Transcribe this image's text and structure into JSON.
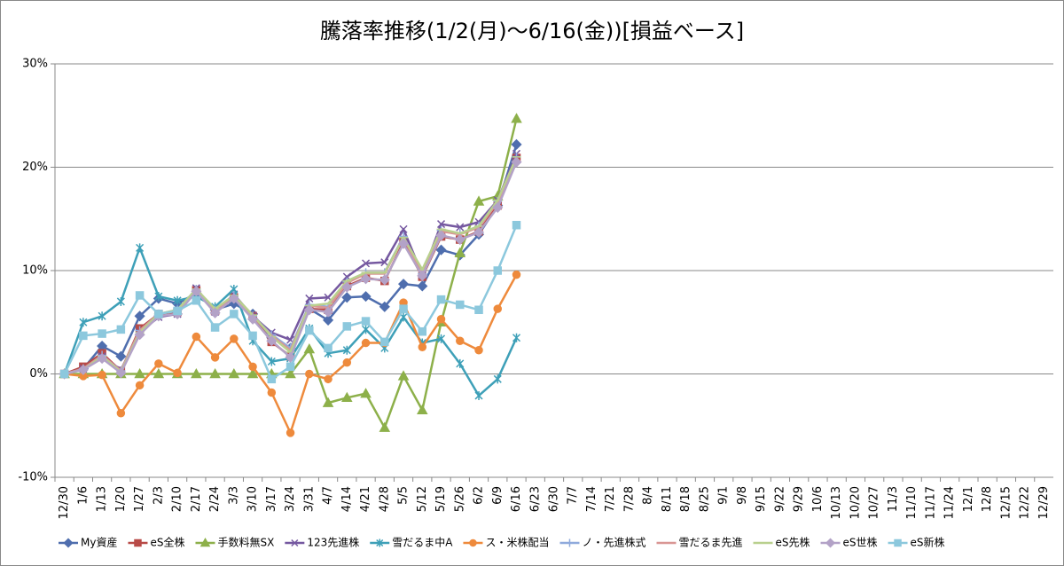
{
  "chart_data": {
    "type": "line",
    "title": "騰落率推移(1/2(月)～6/16(金))[損益ベース]",
    "categories": [
      "12/30",
      "1/6",
      "1/13",
      "1/20",
      "1/27",
      "2/3",
      "2/10",
      "2/17",
      "2/24",
      "3/3",
      "3/10",
      "3/17",
      "3/24",
      "3/31",
      "4/7",
      "4/14",
      "4/21",
      "4/28",
      "5/5",
      "5/12",
      "5/19",
      "5/26",
      "6/2",
      "6/9",
      "6/16",
      "6/23",
      "6/30",
      "7/7",
      "7/14",
      "7/21",
      "7/28",
      "8/4",
      "8/11",
      "8/18",
      "8/25",
      "9/1",
      "9/8",
      "9/15",
      "9/22",
      "9/29",
      "10/6",
      "10/13",
      "10/20",
      "10/27",
      "11/3",
      "11/10",
      "11/17",
      "11/24",
      "12/1",
      "12/8",
      "12/15",
      "12/22",
      "12/29"
    ],
    "ylim": [
      -10,
      30
    ],
    "yticks": [
      {
        "value": -10,
        "label": "-10%"
      },
      {
        "value": 0,
        "label": "0%"
      },
      {
        "value": 10,
        "label": "10%"
      },
      {
        "value": 20,
        "label": "20%"
      },
      {
        "value": 30,
        "label": "30%"
      }
    ],
    "grid": true,
    "legend": "bottom",
    "series": [
      {
        "name": "My資産",
        "color": "#4F6EAE",
        "marker": "diamond",
        "values": [
          0,
          0.5,
          2.7,
          1.7,
          5.6,
          7.3,
          6.8,
          7.8,
          6.2,
          6.8,
          5.8,
          3.5,
          2.5,
          6.3,
          5.2,
          7.4,
          7.5,
          6.5,
          8.7,
          8.5,
          12.0,
          11.5,
          13.5,
          16.3,
          22.2,
          null,
          null,
          null,
          null,
          null,
          null,
          null,
          null,
          null,
          null,
          null,
          null,
          null,
          null,
          null,
          null,
          null,
          null,
          null,
          null,
          null,
          null,
          null,
          null,
          null,
          null,
          null,
          null
        ]
      },
      {
        "name": "eS全株",
        "color": "#B84A47",
        "marker": "square",
        "values": [
          0,
          0.7,
          2.0,
          0.3,
          4.4,
          5.8,
          6.0,
          8.1,
          6.1,
          7.4,
          5.6,
          3.1,
          1.7,
          6.3,
          6.2,
          8.5,
          9.3,
          9.0,
          12.8,
          9.4,
          13.3,
          13.0,
          13.8,
          16.3,
          20.9,
          null,
          null,
          null,
          null,
          null,
          null,
          null,
          null,
          null,
          null,
          null,
          null,
          null,
          null,
          null,
          null,
          null,
          null,
          null,
          null,
          null,
          null,
          null,
          null,
          null,
          null,
          null,
          null
        ]
      },
      {
        "name": "手数料無SX",
        "color": "#8DB04A",
        "marker": "triangle",
        "values": [
          0,
          0,
          0,
          0,
          0,
          0,
          0,
          0,
          0,
          0,
          0,
          0,
          0,
          2.4,
          -2.8,
          -2.3,
          -1.9,
          -5.2,
          -0.2,
          -3.5,
          5.0,
          11.7,
          16.7,
          17.2,
          24.7,
          null,
          null,
          null,
          null,
          null,
          null,
          null,
          null,
          null,
          null,
          null,
          null,
          null,
          null,
          null,
          null,
          null,
          null,
          null,
          null,
          null,
          null,
          null,
          null,
          null,
          null,
          null,
          null
        ]
      },
      {
        "name": "123先進株",
        "color": "#7558A0",
        "marker": "x",
        "values": [
          0,
          0.5,
          1.7,
          0.4,
          4.0,
          5.5,
          5.8,
          8.3,
          6.0,
          7.7,
          5.6,
          4.0,
          3.3,
          7.3,
          7.4,
          9.4,
          10.7,
          10.8,
          14.0,
          9.6,
          14.5,
          14.2,
          14.7,
          16.8,
          21.3,
          null,
          null,
          null,
          null,
          null,
          null,
          null,
          null,
          null,
          null,
          null,
          null,
          null,
          null,
          null,
          null,
          null,
          null,
          null,
          null,
          null,
          null,
          null,
          null,
          null,
          null,
          null,
          null
        ]
      },
      {
        "name": "雪だるま中A",
        "color": "#3EA0B8",
        "marker": "asterisk",
        "values": [
          0,
          5.0,
          5.6,
          7.0,
          12.2,
          7.5,
          7.1,
          7.5,
          6.5,
          8.2,
          3.2,
          1.2,
          1.5,
          4.4,
          2.0,
          2.3,
          4.3,
          2.5,
          5.5,
          3.0,
          3.4,
          1.0,
          -2.1,
          -0.5,
          3.5,
          null,
          null,
          null,
          null,
          null,
          null,
          null,
          null,
          null,
          null,
          null,
          null,
          null,
          null,
          null,
          null,
          null,
          null,
          null,
          null,
          null,
          null,
          null,
          null,
          null,
          null,
          null,
          null
        ]
      },
      {
        "name": "ス・米株配当",
        "color": "#EE8A3C",
        "marker": "circle",
        "values": [
          0,
          -0.2,
          -0.1,
          -3.8,
          -1.1,
          1.0,
          0.1,
          3.6,
          1.6,
          3.4,
          0.7,
          -1.8,
          -5.7,
          0,
          -0.5,
          1.1,
          3.0,
          3.0,
          6.9,
          2.6,
          5.3,
          3.2,
          2.3,
          6.3,
          9.6,
          null,
          null,
          null,
          null,
          null,
          null,
          null,
          null,
          null,
          null,
          null,
          null,
          null,
          null,
          null,
          null,
          null,
          null,
          null,
          null,
          null,
          null,
          null,
          null,
          null,
          null,
          null,
          null
        ]
      },
      {
        "name": "ノ・先進株式",
        "color": "#8FAADC",
        "marker": "plus",
        "values": [
          0,
          0.5,
          1.8,
          0.3,
          4.2,
          5.8,
          6.2,
          8.2,
          6.2,
          7.6,
          5.6,
          3.8,
          2.5,
          6.7,
          6.5,
          8.9,
          9.8,
          9.8,
          13.3,
          9.7,
          13.9,
          13.6,
          14.3,
          16.7,
          21.0,
          null,
          null,
          null,
          null,
          null,
          null,
          null,
          null,
          null,
          null,
          null,
          null,
          null,
          null,
          null,
          null,
          null,
          null,
          null,
          null,
          null,
          null,
          null,
          null,
          null,
          null,
          null,
          null
        ]
      },
      {
        "name": "雪だるま先進",
        "color": "#D99694",
        "marker": "none",
        "values": [
          0,
          0.5,
          1.8,
          0.3,
          4.2,
          5.8,
          6.1,
          8.2,
          6.1,
          7.6,
          5.6,
          3.7,
          2.3,
          6.6,
          6.4,
          8.8,
          9.7,
          9.7,
          13.2,
          9.6,
          13.8,
          13.5,
          14.2,
          16.6,
          20.9,
          null,
          null,
          null,
          null,
          null,
          null,
          null,
          null,
          null,
          null,
          null,
          null,
          null,
          null,
          null,
          null,
          null,
          null,
          null,
          null,
          null,
          null,
          null,
          null,
          null,
          null,
          null,
          null
        ]
      },
      {
        "name": "eS先株",
        "color": "#B9D08E",
        "marker": "dash",
        "values": [
          0,
          0.4,
          1.7,
          0.2,
          4.0,
          5.8,
          6.2,
          8.2,
          6.3,
          7.6,
          5.7,
          3.6,
          2.1,
          6.6,
          6.8,
          9.0,
          9.8,
          9.8,
          13.2,
          10.1,
          14.0,
          13.6,
          14.3,
          16.8,
          21.0,
          null,
          null,
          null,
          null,
          null,
          null,
          null,
          null,
          null,
          null,
          null,
          null,
          null,
          null,
          null,
          null,
          null,
          null,
          null,
          null,
          null,
          null,
          null,
          null,
          null,
          null,
          null,
          null
        ]
      },
      {
        "name": "eS世株",
        "color": "#B3A2C7",
        "marker": "diamond",
        "values": [
          0,
          0.4,
          1.5,
          0.1,
          3.8,
          5.6,
          5.8,
          8.0,
          5.9,
          7.3,
          5.3,
          3.2,
          1.6,
          6.2,
          6.0,
          8.4,
          9.2,
          9.1,
          12.6,
          9.5,
          13.4,
          13.0,
          13.7,
          16.1,
          20.5,
          null,
          null,
          null,
          null,
          null,
          null,
          null,
          null,
          null,
          null,
          null,
          null,
          null,
          null,
          null,
          null,
          null,
          null,
          null,
          null,
          null,
          null,
          null,
          null,
          null,
          null,
          null,
          null
        ]
      },
      {
        "name": "eS新株",
        "color": "#8CC8DD",
        "marker": "square",
        "values": [
          0,
          3.7,
          3.9,
          4.3,
          7.6,
          5.8,
          6.1,
          7.1,
          4.5,
          5.8,
          3.7,
          -0.5,
          0.7,
          4.2,
          2.5,
          4.6,
          5.1,
          3.1,
          6.3,
          4.1,
          7.2,
          6.7,
          6.2,
          10.0,
          14.4,
          null,
          null,
          null,
          null,
          null,
          null,
          null,
          null,
          null,
          null,
          null,
          null,
          null,
          null,
          null,
          null,
          null,
          null,
          null,
          null,
          null,
          null,
          null,
          null,
          null,
          null,
          null,
          null
        ]
      }
    ]
  }
}
